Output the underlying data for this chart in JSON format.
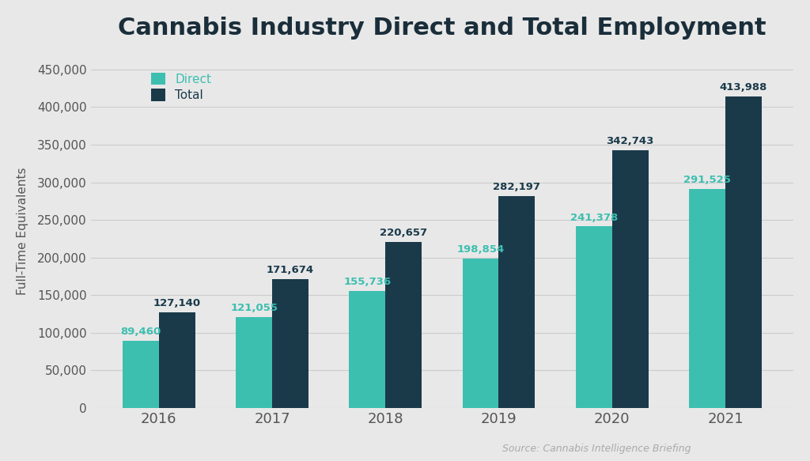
{
  "title": "Cannabis Industry Direct and Total Employment",
  "ylabel": "Full-Time Equivalents",
  "source": "Source: Cannabis Intelligence Briefing",
  "years": [
    "2016",
    "2017",
    "2018",
    "2019",
    "2020",
    "2021"
  ],
  "direct": [
    89460,
    121055,
    155736,
    198854,
    241378,
    291525
  ],
  "total": [
    127140,
    171674,
    220657,
    282197,
    342743,
    413988
  ],
  "color_direct": "#3dbfb0",
  "color_total": "#1a3a4a",
  "background_color": "#e8e8e8",
  "plot_bg": "#e8e8e8",
  "ylim": [
    0,
    470000
  ],
  "yticks": [
    0,
    50000,
    100000,
    150000,
    200000,
    250000,
    300000,
    350000,
    400000,
    450000
  ],
  "legend_labels": [
    "Direct",
    "Total"
  ],
  "title_fontsize": 22,
  "label_fontsize": 9.5,
  "tick_fontsize": 11,
  "bar_width": 0.32,
  "grid_color": "#cccccc",
  "title_color": "#1a2e3a",
  "axis_label_color": "#555555",
  "tick_color": "#555555",
  "source_color": "#aaaaaa"
}
